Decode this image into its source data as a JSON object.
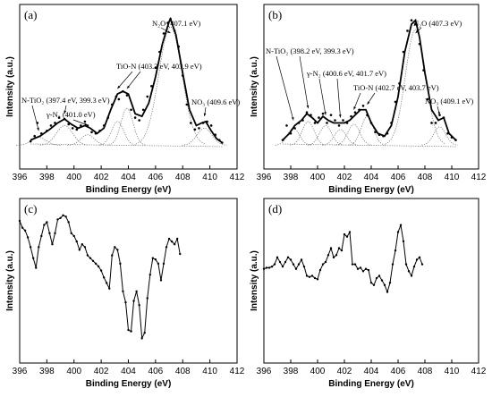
{
  "chart_data": [
    {
      "panel": "(a)",
      "type": "line",
      "xlabel": "Binding Energy (eV)",
      "ylabel": "Intensity (a.u.)",
      "xlim": [
        396,
        412
      ],
      "ylim": [
        0,
        1
      ],
      "xticks": [
        396,
        398,
        400,
        402,
        404,
        406,
        408,
        410,
        412
      ],
      "series": [
        {
          "role": "raw",
          "x": [
            396.8,
            397.1,
            397.3,
            397.6,
            398.0,
            398.3,
            398.6,
            398.9,
            399.3,
            399.6,
            399.9,
            400.2,
            400.5,
            400.8,
            401.0,
            401.3,
            401.6,
            401.9,
            402.2,
            402.5,
            402.8,
            403.1,
            403.3,
            403.6,
            403.9,
            404.2,
            404.5,
            404.8,
            405.1,
            405.4,
            405.7,
            406.0,
            406.3,
            406.6,
            406.9,
            407.1,
            407.4,
            407.7,
            408.0,
            408.3,
            408.6,
            408.9,
            409.2,
            409.5,
            409.8,
            410.1,
            410.4,
            410.7,
            410.9
          ],
          "y": [
            0.06,
            0.1,
            0.2,
            0.12,
            0.14,
            0.18,
            0.2,
            0.24,
            0.23,
            0.19,
            0.16,
            0.15,
            0.18,
            0.21,
            0.18,
            0.13,
            0.12,
            0.14,
            0.18,
            0.24,
            0.34,
            0.4,
            0.38,
            0.44,
            0.41,
            0.3,
            0.24,
            0.22,
            0.3,
            0.4,
            0.48,
            0.62,
            0.74,
            0.88,
            0.96,
            0.99,
            0.9,
            0.78,
            0.56,
            0.34,
            0.2,
            0.15,
            0.16,
            0.2,
            0.21,
            0.18,
            0.11,
            0.07,
            0.05
          ]
        },
        {
          "role": "fit",
          "x": [
            396.8,
            397.5,
            398.2,
            398.8,
            399.3,
            399.8,
            400.3,
            400.8,
            401.2,
            401.7,
            402.2,
            402.7,
            403.2,
            403.6,
            404.0,
            404.5,
            405.0,
            405.5,
            406.0,
            406.5,
            407.0,
            407.1,
            407.5,
            408.0,
            408.5,
            409.0,
            409.4,
            409.7,
            410.1,
            410.5,
            410.9
          ],
          "y": [
            0.07,
            0.1,
            0.15,
            0.2,
            0.23,
            0.19,
            0.16,
            0.18,
            0.16,
            0.12,
            0.16,
            0.3,
            0.42,
            0.44,
            0.42,
            0.27,
            0.25,
            0.35,
            0.55,
            0.8,
            0.97,
            0.99,
            0.87,
            0.58,
            0.3,
            0.18,
            0.2,
            0.21,
            0.14,
            0.08,
            0.05
          ]
        },
        {
          "role": "component",
          "center": 397.4,
          "height": 0.06,
          "width": 0.55
        },
        {
          "role": "component",
          "center": 399.3,
          "height": 0.15,
          "width": 0.6
        },
        {
          "role": "component",
          "center": 401.0,
          "height": 0.08,
          "width": 0.5
        },
        {
          "role": "component",
          "center": 403.2,
          "height": 0.18,
          "width": 0.45
        },
        {
          "role": "component",
          "center": 403.9,
          "height": 0.28,
          "width": 0.45
        },
        {
          "role": "component",
          "center": 407.1,
          "height": 0.9,
          "width": 0.85
        },
        {
          "role": "component",
          "center": 409.6,
          "height": 0.13,
          "width": 0.55
        }
      ],
      "annotations": [
        {
          "text": "N₂O (407.1 eV)",
          "target_x": 407.1
        },
        {
          "text": "TiO-N (403.2 eV, 403.9 eV)",
          "target_x": [
            403.2,
            403.9
          ]
        },
        {
          "text": "N-TiO₂ (397.4 eV, 399.3 eV)",
          "target_x": [
            397.4,
            399.3
          ]
        },
        {
          "text": "γ-N₂ (401.0 eV)",
          "target_x": 401.0
        },
        {
          "text": "NO₃ (409.6 eV)",
          "target_x": 409.6
        }
      ]
    },
    {
      "panel": "(b)",
      "type": "line",
      "xlabel": "Binding Energy (eV)",
      "ylabel": "Intensity (a.u.)",
      "xlim": [
        396,
        412
      ],
      "ylim": [
        0,
        1
      ],
      "xticks": [
        396,
        398,
        400,
        402,
        404,
        406,
        408,
        410,
        412
      ],
      "series": [
        {
          "role": "raw",
          "x": [
            397.4,
            397.7,
            398.0,
            398.3,
            398.6,
            398.9,
            399.2,
            399.5,
            399.8,
            400.1,
            400.4,
            400.7,
            401.0,
            401.3,
            401.6,
            401.9,
            402.2,
            402.5,
            402.8,
            403.1,
            403.4,
            403.7,
            404.0,
            404.3,
            404.6,
            404.9,
            405.2,
            405.5,
            405.8,
            406.1,
            406.4,
            406.7,
            407.0,
            407.3,
            407.6,
            407.9,
            408.2,
            408.5,
            408.8,
            409.1,
            409.4,
            409.7,
            410.0,
            410.3
          ],
          "y": [
            0.07,
            0.18,
            0.12,
            0.16,
            0.2,
            0.22,
            0.28,
            0.26,
            0.2,
            0.24,
            0.27,
            0.2,
            0.26,
            0.22,
            0.18,
            0.22,
            0.2,
            0.25,
            0.28,
            0.3,
            0.33,
            0.26,
            0.2,
            0.13,
            0.11,
            0.1,
            0.12,
            0.2,
            0.36,
            0.5,
            0.74,
            0.9,
            0.98,
            0.95,
            0.8,
            0.6,
            0.38,
            0.2,
            0.2,
            0.26,
            0.24,
            0.12,
            0.09,
            0.07
          ]
        },
        {
          "role": "fit",
          "x": [
            397.4,
            397.9,
            398.3,
            398.8,
            399.2,
            399.6,
            400.0,
            400.4,
            400.8,
            401.2,
            401.6,
            402.0,
            402.4,
            402.8,
            403.2,
            403.6,
            404.0,
            404.5,
            405.0,
            405.5,
            406.0,
            406.5,
            407.0,
            407.3,
            407.6,
            408.0,
            408.5,
            409.0,
            409.4,
            409.8,
            410.3
          ],
          "y": [
            0.07,
            0.12,
            0.18,
            0.22,
            0.27,
            0.24,
            0.2,
            0.25,
            0.22,
            0.2,
            0.2,
            0.2,
            0.22,
            0.26,
            0.3,
            0.3,
            0.2,
            0.12,
            0.1,
            0.18,
            0.4,
            0.74,
            0.95,
            0.98,
            0.85,
            0.58,
            0.3,
            0.22,
            0.24,
            0.12,
            0.07
          ]
        },
        {
          "role": "component",
          "center": 398.2,
          "height": 0.13,
          "width": 0.45
        },
        {
          "role": "component",
          "center": 399.3,
          "height": 0.18,
          "width": 0.45
        },
        {
          "role": "component",
          "center": 400.6,
          "height": 0.15,
          "width": 0.45
        },
        {
          "role": "component",
          "center": 401.7,
          "height": 0.12,
          "width": 0.45
        },
        {
          "role": "component",
          "center": 402.7,
          "height": 0.16,
          "width": 0.45
        },
        {
          "role": "component",
          "center": 403.7,
          "height": 0.22,
          "width": 0.45
        },
        {
          "role": "component",
          "center": 407.3,
          "height": 0.88,
          "width": 0.75
        },
        {
          "role": "component",
          "center": 409.1,
          "height": 0.14,
          "width": 0.45
        }
      ],
      "annotations": [
        {
          "text": "N₂O (407.3 eV)",
          "target_x": 407.3
        },
        {
          "text": "N-TiO₂ (398.2 eV, 399.3 eV)",
          "target_x": [
            398.2,
            399.3
          ]
        },
        {
          "text": "γ-N₂ (400.6 eV, 401.7 eV)",
          "target_x": [
            400.6,
            401.7
          ]
        },
        {
          "text": "TiO-N (402.7 eV, 403.7 eV)",
          "target_x": [
            402.7,
            403.7
          ]
        },
        {
          "text": "NO₃ (409.1 eV)",
          "target_x": 409.1
        }
      ]
    },
    {
      "panel": "(c)",
      "type": "line",
      "xlabel": "Binding Energy (eV)",
      "ylabel": "Intensity (a.u.)",
      "xlim": [
        396,
        412
      ],
      "ylim": [
        0,
        1
      ],
      "xticks": [
        396,
        398,
        400,
        402,
        404,
        406,
        408,
        410,
        412
      ],
      "series": [
        {
          "role": "raw",
          "x": [
            396.0,
            396.2,
            396.4,
            396.6,
            396.8,
            397.0,
            397.2,
            397.4,
            397.6,
            397.8,
            398.0,
            398.2,
            398.4,
            398.6,
            398.8,
            399.0,
            399.2,
            399.4,
            399.6,
            399.8,
            400.0,
            400.2,
            400.4,
            400.6,
            400.8,
            401.0,
            401.2,
            401.4,
            401.6,
            401.8,
            402.0,
            402.2,
            402.4,
            402.6,
            402.8,
            403.0,
            403.2,
            403.4,
            403.6,
            403.8,
            404.0,
            404.2,
            404.4,
            404.6,
            404.8,
            405.0,
            405.2,
            405.4,
            405.6,
            405.8,
            406.0,
            406.2,
            406.4,
            406.6,
            406.8,
            407.0,
            407.2,
            407.4,
            407.6,
            407.8
          ],
          "y": [
            0.91,
            0.86,
            0.84,
            0.79,
            0.72,
            0.64,
            0.57,
            0.72,
            0.8,
            0.88,
            0.9,
            0.82,
            0.74,
            0.82,
            0.92,
            0.93,
            0.95,
            0.94,
            0.9,
            0.82,
            0.8,
            0.76,
            0.7,
            0.74,
            0.72,
            0.66,
            0.64,
            0.62,
            0.6,
            0.58,
            0.55,
            0.5,
            0.46,
            0.42,
            0.66,
            0.72,
            0.7,
            0.6,
            0.4,
            0.32,
            0.12,
            0.11,
            0.33,
            0.4,
            0.3,
            0.06,
            0.1,
            0.35,
            0.52,
            0.64,
            0.63,
            0.6,
            0.48,
            0.6,
            0.72,
            0.78,
            0.76,
            0.74,
            0.78,
            0.67
          ]
        }
      ]
    },
    {
      "panel": "(d)",
      "type": "line",
      "xlabel": "Binding Energy (eV)",
      "ylabel": "Intensity (a.u.)",
      "xlim": [
        396,
        412
      ],
      "ylim": [
        0,
        1
      ],
      "xticks": [
        396,
        398,
        400,
        402,
        404,
        406,
        408,
        410,
        412
      ],
      "series": [
        {
          "role": "raw",
          "x": [
            396.0,
            396.2,
            396.4,
            396.6,
            396.8,
            397.0,
            397.2,
            397.4,
            397.6,
            397.8,
            398.0,
            398.2,
            398.4,
            398.6,
            398.8,
            399.0,
            399.2,
            399.4,
            399.6,
            399.8,
            400.0,
            400.2,
            400.4,
            400.6,
            400.8,
            401.0,
            401.2,
            401.4,
            401.6,
            401.8,
            402.0,
            402.2,
            402.4,
            402.6,
            402.8,
            403.0,
            403.2,
            403.4,
            403.6,
            403.8,
            404.0,
            404.2,
            404.4,
            404.6,
            404.8,
            405.0,
            405.2,
            405.4,
            405.6,
            405.8,
            406.0,
            406.2,
            406.4,
            406.6,
            406.8,
            407.0,
            407.2,
            407.4,
            407.6,
            407.8
          ],
          "y": [
            0.56,
            0.57,
            0.57,
            0.58,
            0.6,
            0.66,
            0.62,
            0.58,
            0.62,
            0.66,
            0.64,
            0.6,
            0.56,
            0.6,
            0.64,
            0.58,
            0.5,
            0.49,
            0.5,
            0.48,
            0.47,
            0.55,
            0.6,
            0.62,
            0.68,
            0.74,
            0.66,
            0.68,
            0.74,
            0.72,
            0.86,
            0.84,
            0.88,
            0.6,
            0.6,
            0.56,
            0.57,
            0.54,
            0.56,
            0.55,
            0.44,
            0.42,
            0.48,
            0.5,
            0.46,
            0.42,
            0.36,
            0.44,
            0.6,
            0.72,
            0.88,
            0.94,
            0.8,
            0.6,
            0.54,
            0.5,
            0.58,
            0.64,
            0.66,
            0.6
          ]
        }
      ]
    }
  ]
}
